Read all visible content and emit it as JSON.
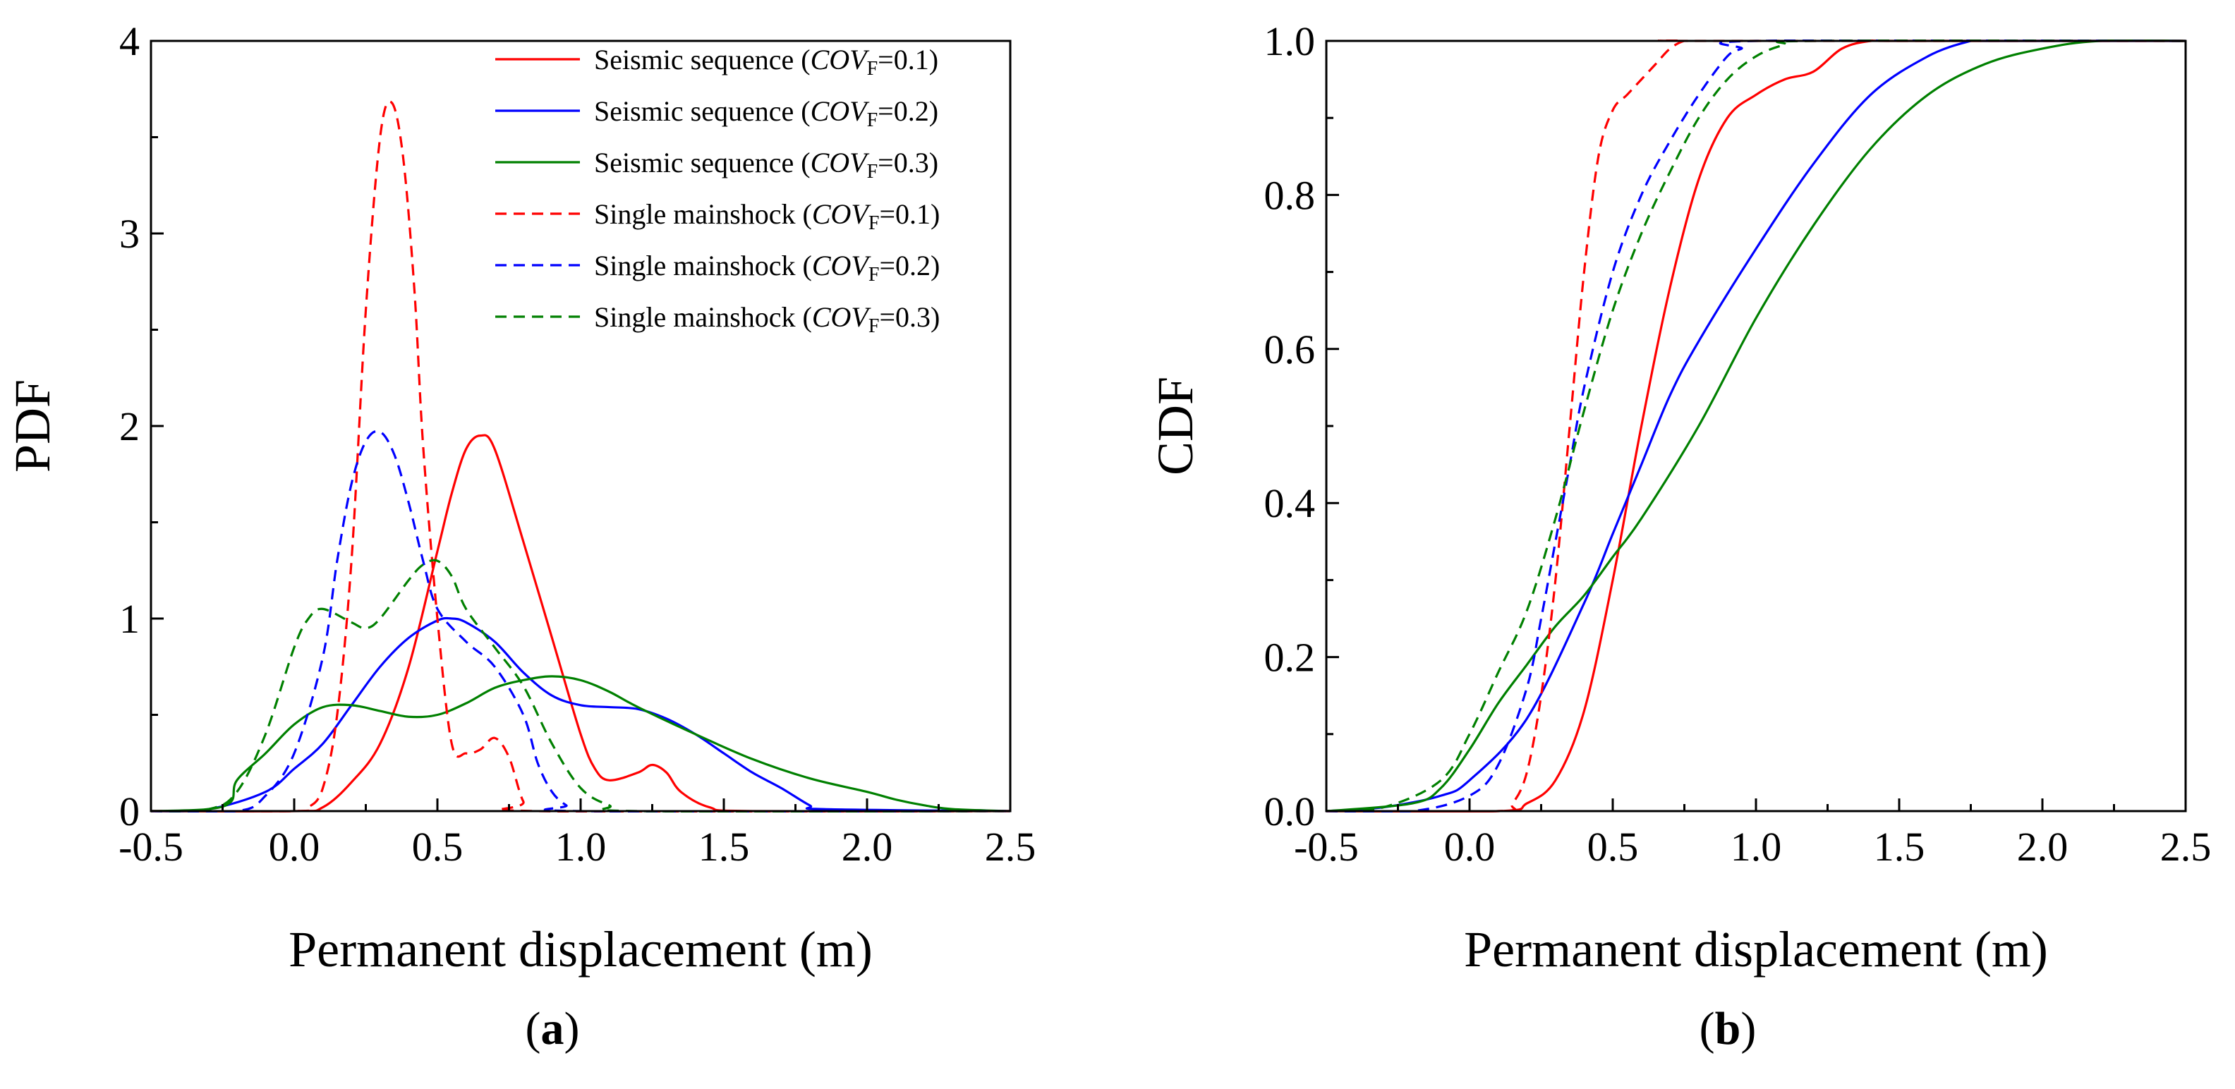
{
  "figure": {
    "panels": [
      "a",
      "b"
    ]
  },
  "series_styles": [
    {
      "name": "Seismic sequence",
      "cov": "0.1",
      "color": "#ff0000",
      "dash": "solid"
    },
    {
      "name": "Seismic sequence",
      "cov": "0.2",
      "color": "#0000ff",
      "dash": "solid"
    },
    {
      "name": "Seismic sequence",
      "cov": "0.3",
      "color": "#008000",
      "dash": "solid"
    },
    {
      "name": "Single mainshock",
      "cov": "0.1",
      "color": "#ff0000",
      "dash": "dashed"
    },
    {
      "name": "Single mainshock",
      "cov": "0.2",
      "color": "#0000ff",
      "dash": "dashed"
    },
    {
      "name": "Single mainshock",
      "cov": "0.3",
      "color": "#008000",
      "dash": "dashed"
    }
  ],
  "legend_parts": {
    "cov_prefix": "COV",
    "cov_subscript": "F",
    "eq": "=",
    "open": "(",
    "close": ")"
  },
  "chart_data": [
    {
      "panel_label": "a",
      "type": "line",
      "title": "",
      "xlabel": "Permanent displacement (m)",
      "ylabel": "PDF",
      "xlim": [
        -0.5,
        2.5
      ],
      "ylim": [
        0,
        4
      ],
      "xticks": [
        -0.5,
        0.0,
        0.5,
        1.0,
        1.5,
        2.0,
        2.5
      ],
      "xtick_labels": [
        "-0.5",
        "0.0",
        "0.5",
        "1.0",
        "1.5",
        "2.0",
        "2.5"
      ],
      "yticks": [
        0,
        1,
        2,
        3,
        4
      ],
      "ytick_labels": [
        "0",
        "1",
        "2",
        "3",
        "4"
      ],
      "legend": "top-right",
      "grid": false,
      "series": [
        {
          "name": "Seismic sequence (COVF=0.1)",
          "x": [
            -0.5,
            0.0,
            0.1,
            0.2,
            0.3,
            0.4,
            0.5,
            0.55,
            0.6,
            0.65,
            0.7,
            0.8,
            0.9,
            1.0,
            1.05,
            1.1,
            1.2,
            1.25,
            1.3,
            1.35,
            1.45,
            1.6,
            2.5
          ],
          "y": [
            0,
            0,
            0.02,
            0.15,
            0.35,
            0.75,
            1.35,
            1.65,
            1.88,
            1.95,
            1.88,
            1.4,
            0.9,
            0.4,
            0.22,
            0.16,
            0.2,
            0.24,
            0.2,
            0.1,
            0.02,
            0,
            0
          ]
        },
        {
          "name": "Seismic sequence (COVF=0.2)",
          "x": [
            -0.5,
            -0.3,
            -0.1,
            0.0,
            0.1,
            0.2,
            0.3,
            0.4,
            0.5,
            0.55,
            0.6,
            0.7,
            0.8,
            0.9,
            1.0,
            1.1,
            1.2,
            1.3,
            1.4,
            1.5,
            1.6,
            1.7,
            1.8,
            1.85,
            2.5
          ],
          "y": [
            0,
            0.01,
            0.1,
            0.22,
            0.35,
            0.55,
            0.75,
            0.9,
            0.99,
            1.0,
            0.98,
            0.88,
            0.72,
            0.6,
            0.55,
            0.54,
            0.53,
            0.48,
            0.4,
            0.3,
            0.2,
            0.12,
            0.03,
            0.01,
            0
          ]
        },
        {
          "name": "Seismic sequence (COVF=0.3)",
          "x": [
            -0.5,
            -0.3,
            -0.22,
            -0.2,
            -0.1,
            0.0,
            0.1,
            0.2,
            0.3,
            0.4,
            0.5,
            0.6,
            0.7,
            0.8,
            0.9,
            1.0,
            1.1,
            1.2,
            1.4,
            1.6,
            1.8,
            2.0,
            2.1,
            2.2,
            2.3,
            2.5
          ],
          "y": [
            0,
            0.01,
            0.05,
            0.16,
            0.3,
            0.45,
            0.54,
            0.55,
            0.52,
            0.49,
            0.5,
            0.56,
            0.64,
            0.68,
            0.7,
            0.68,
            0.62,
            0.54,
            0.4,
            0.27,
            0.17,
            0.1,
            0.06,
            0.03,
            0.01,
            0
          ]
        },
        {
          "name": "Single mainshock (COVF=0.1)",
          "x": [
            -0.5,
            0.0,
            0.05,
            0.1,
            0.15,
            0.2,
            0.25,
            0.3,
            0.34,
            0.38,
            0.42,
            0.45,
            0.5,
            0.55,
            0.6,
            0.65,
            0.7,
            0.75,
            0.8,
            0.85,
            2.5
          ],
          "y": [
            0,
            0,
            0.02,
            0.12,
            0.5,
            1.3,
            2.6,
            3.5,
            3.68,
            3.4,
            2.7,
            1.9,
            1.0,
            0.35,
            0.3,
            0.32,
            0.38,
            0.28,
            0.05,
            0,
            0
          ]
        },
        {
          "name": "Single mainshock (COVF=0.2)",
          "x": [
            -0.5,
            -0.2,
            -0.1,
            0.0,
            0.1,
            0.15,
            0.2,
            0.25,
            0.3,
            0.35,
            0.4,
            0.45,
            0.5,
            0.6,
            0.7,
            0.8,
            0.85,
            0.9,
            0.95,
            1.0,
            2.5
          ],
          "y": [
            0,
            0,
            0.08,
            0.3,
            0.8,
            1.3,
            1.7,
            1.92,
            1.97,
            1.85,
            1.6,
            1.3,
            1.05,
            0.88,
            0.75,
            0.5,
            0.25,
            0.1,
            0.03,
            0,
            0
          ]
        },
        {
          "name": "Single mainshock (COVF=0.3)",
          "x": [
            -0.5,
            -0.3,
            -0.2,
            -0.1,
            0.0,
            0.05,
            0.1,
            0.2,
            0.25,
            0.3,
            0.4,
            0.45,
            0.5,
            0.55,
            0.6,
            0.7,
            0.8,
            0.9,
            1.0,
            1.1,
            1.2,
            2.5
          ],
          "y": [
            0,
            0.01,
            0.1,
            0.4,
            0.85,
            1.0,
            1.05,
            0.98,
            0.95,
            1.0,
            1.2,
            1.28,
            1.3,
            1.22,
            1.05,
            0.85,
            0.65,
            0.35,
            0.12,
            0.03,
            0,
            0
          ]
        }
      ]
    },
    {
      "panel_label": "b",
      "type": "line",
      "title": "",
      "xlabel": "Permanent displacement (m)",
      "ylabel": "CDF",
      "xlim": [
        -0.5,
        2.5
      ],
      "ylim": [
        0,
        1
      ],
      "xticks": [
        -0.5,
        0.0,
        0.5,
        1.0,
        1.5,
        2.0,
        2.5
      ],
      "xtick_labels": [
        "-0.5",
        "0.0",
        "0.5",
        "1.0",
        "1.5",
        "2.0",
        "2.5"
      ],
      "yticks": [
        0,
        0.2,
        0.4,
        0.6,
        0.8,
        1.0
      ],
      "ytick_labels": [
        "0.0",
        "0.2",
        "0.4",
        "0.6",
        "0.8",
        "1.0"
      ],
      "legend": "none",
      "grid": false,
      "series": [
        {
          "name": "Seismic sequence (COVF=0.1)",
          "x": [
            -0.5,
            0.1,
            0.2,
            0.3,
            0.4,
            0.5,
            0.6,
            0.7,
            0.8,
            0.9,
            1.0,
            1.1,
            1.2,
            1.3,
            1.4,
            1.5,
            2.5
          ],
          "y": [
            0,
            0,
            0.01,
            0.04,
            0.13,
            0.3,
            0.5,
            0.68,
            0.82,
            0.9,
            0.93,
            0.95,
            0.96,
            0.99,
            1.0,
            1.0,
            1.0
          ]
        },
        {
          "name": "Seismic sequence (COVF=0.2)",
          "x": [
            -0.5,
            -0.3,
            -0.1,
            0.0,
            0.2,
            0.4,
            0.5,
            0.6,
            0.7,
            0.8,
            1.0,
            1.2,
            1.4,
            1.6,
            1.75,
            1.8,
            2.5
          ],
          "y": [
            0,
            0.005,
            0.02,
            0.04,
            0.12,
            0.27,
            0.36,
            0.45,
            0.54,
            0.61,
            0.73,
            0.84,
            0.93,
            0.98,
            1.0,
            1.0,
            1.0
          ]
        },
        {
          "name": "Seismic sequence (COVF=0.3)",
          "x": [
            -0.5,
            -0.2,
            -0.1,
            0.0,
            0.1,
            0.2,
            0.3,
            0.4,
            0.5,
            0.6,
            0.8,
            1.0,
            1.2,
            1.4,
            1.6,
            1.8,
            2.0,
            2.2,
            2.5
          ],
          "y": [
            0,
            0.01,
            0.03,
            0.08,
            0.14,
            0.19,
            0.24,
            0.28,
            0.33,
            0.38,
            0.5,
            0.64,
            0.76,
            0.86,
            0.93,
            0.97,
            0.99,
            1.0,
            1.0
          ]
        },
        {
          "name": "Single mainshock (COVF=0.1)",
          "x": [
            -0.5,
            0.1,
            0.15,
            0.2,
            0.25,
            0.3,
            0.35,
            0.4,
            0.45,
            0.5,
            0.55,
            0.6,
            0.65,
            0.7,
            0.75,
            0.8,
            2.5
          ],
          "y": [
            0,
            0,
            0.01,
            0.05,
            0.15,
            0.3,
            0.5,
            0.7,
            0.85,
            0.91,
            0.93,
            0.95,
            0.97,
            0.99,
            1.0,
            1.0,
            1.0
          ]
        },
        {
          "name": "Single mainshock (COVF=0.2)",
          "x": [
            -0.5,
            -0.2,
            0.0,
            0.1,
            0.2,
            0.25,
            0.3,
            0.35,
            0.4,
            0.5,
            0.6,
            0.7,
            0.8,
            0.9,
            0.95,
            1.0,
            2.5
          ],
          "y": [
            0,
            0,
            0.02,
            0.06,
            0.16,
            0.25,
            0.35,
            0.45,
            0.55,
            0.7,
            0.8,
            0.87,
            0.93,
            0.98,
            0.99,
            1.0,
            1.0
          ]
        },
        {
          "name": "Single mainshock (COVF=0.3)",
          "x": [
            -0.5,
            -0.3,
            -0.1,
            0.0,
            0.1,
            0.2,
            0.3,
            0.4,
            0.5,
            0.6,
            0.7,
            0.8,
            0.9,
            1.0,
            1.1,
            1.2,
            2.5
          ],
          "y": [
            0,
            0.005,
            0.04,
            0.1,
            0.18,
            0.26,
            0.38,
            0.52,
            0.65,
            0.75,
            0.83,
            0.9,
            0.95,
            0.98,
            0.995,
            1.0,
            1.0
          ]
        }
      ]
    }
  ]
}
